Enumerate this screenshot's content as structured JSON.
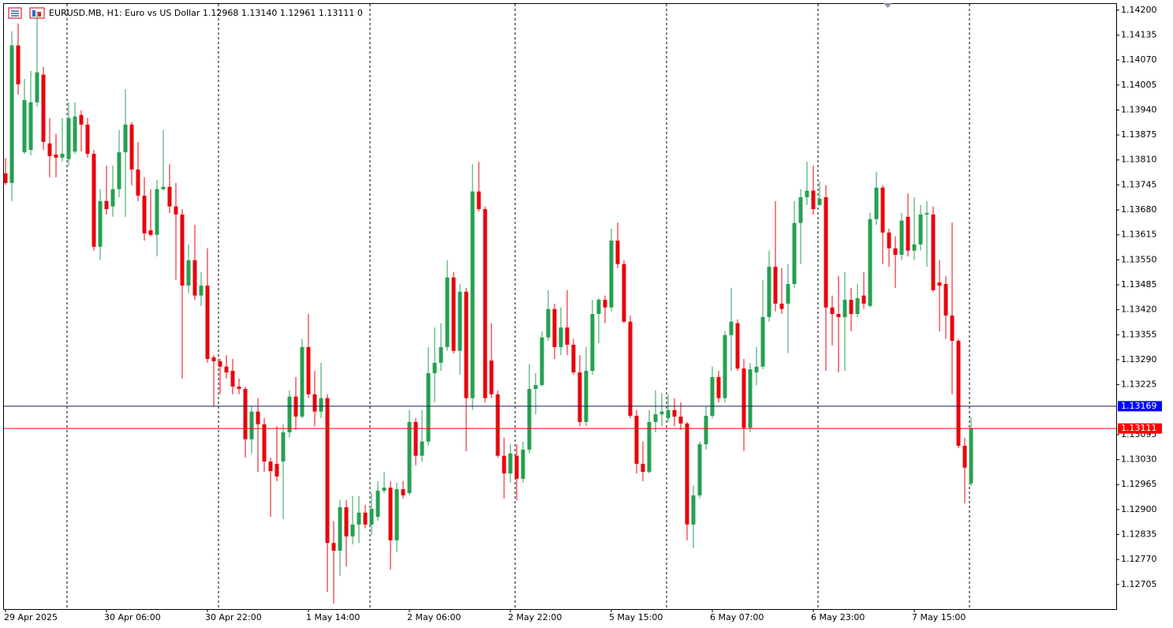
{
  "chart_data": {
    "type": "candlestick",
    "title": "EURUSD.MB, H1:  Euro vs US Dollar  1.12968 1.13140 1.12961 1.13111  0",
    "up_color": "#26a052",
    "down_color": "#e8050d",
    "categories": [
      "29 Apr 2025",
      null,
      null,
      null,
      null,
      null,
      null,
      null,
      null,
      null,
      null,
      null,
      null,
      null,
      null,
      null,
      "30 Apr 06:00",
      null,
      null,
      null,
      null,
      null,
      null,
      null,
      null,
      null,
      null,
      null,
      null,
      null,
      null,
      null,
      "30 Apr 22:00",
      null,
      null,
      null,
      null,
      null,
      null,
      null,
      null,
      null,
      null,
      null,
      null,
      null,
      null,
      null,
      "1 May 14:00",
      null,
      null,
      null,
      null,
      null,
      null,
      null,
      null,
      null,
      null,
      null,
      null,
      null,
      null,
      null,
      "2 May 06:00",
      null,
      null,
      null,
      null,
      null,
      null,
      null,
      null,
      null,
      null,
      null,
      null,
      null,
      null,
      null,
      "2 May 22:00",
      null,
      null,
      null,
      null,
      null,
      null,
      null,
      null,
      null,
      null,
      null,
      null,
      null,
      null,
      null,
      "5 May 15:00",
      null,
      null,
      null,
      null,
      null,
      null,
      null,
      null,
      null,
      null,
      null,
      null,
      null,
      null,
      null,
      "6 May 07:00",
      null,
      null,
      null,
      null,
      null,
      null,
      null,
      null,
      null,
      null,
      null,
      null,
      null,
      null,
      null,
      "6 May 23:00",
      null,
      null,
      null,
      null,
      null,
      null,
      null,
      null,
      null,
      null,
      null,
      null,
      null,
      null,
      null,
      "7 May 15:00",
      null,
      null,
      null,
      null,
      null,
      null,
      null,
      null,
      null
    ],
    "open": [
      1.13775,
      1.1375,
      1.14108,
      1.1383,
      1.13836,
      1.1396,
      1.14032,
      1.13853,
      1.13824,
      1.13816,
      1.13812,
      1.13832,
      1.13927,
      1.13902,
      1.13826,
      1.13584,
      1.13703,
      1.13689,
      1.13734,
      1.1383,
      1.13902,
      1.13785,
      1.13717,
      1.13627,
      1.13615,
      1.13734,
      1.1374,
      1.13689,
      1.13668,
      1.13483,
      1.13549,
      1.13457,
      1.13483,
      1.13296,
      1.13286,
      1.13272,
      1.13261,
      1.1322,
      1.13214,
      1.13083,
      1.13155,
      1.13122,
      1.13025,
      1.13019,
      1.13025,
      1.13101,
      1.13194,
      1.13142,
      1.13323,
      1.132,
      1.13155,
      1.1319,
      1.12813,
      1.12793,
      1.12906,
      1.1283,
      1.12861,
      1.12892,
      1.12861,
      1.12881,
      1.12949,
      1.12957,
      1.1282,
      1.12953,
      1.12943,
      1.13128,
      1.1304,
      1.13077,
      1.13255,
      1.13282,
      1.13323,
      1.13504,
      1.13313,
      1.13467,
      1.1319,
      1.13728,
      1.13682,
      1.13288,
      1.132,
      1.1304,
      1.12994,
      1.1304,
      1.1298,
      1.13056,
      1.13214,
      1.13224,
      1.13348,
      1.13422,
      1.13323,
      1.13374,
      1.13329,
      1.13257,
      1.13128,
      1.13261,
      1.13409,
      1.13446,
      1.13426,
      1.136,
      1.13539,
      1.13389,
      1.13144,
      1.13019,
      1.12998,
      1.13128,
      1.13148,
      1.13138,
      1.13159,
      1.13142,
      1.13124,
      1.12861,
      1.12937,
      1.1307,
      1.13144,
      1.13245,
      1.1319,
      1.13354,
      1.13385,
      1.13267,
      1.13113,
      1.13257,
      1.13272,
      1.13401,
      1.13532,
      1.13436,
      1.13436,
      1.13487,
      1.13646,
      1.13713,
      1.1373,
      1.13693,
      1.13713,
      1.13426,
      1.13409,
      1.13401,
      1.13446,
      1.13409,
      1.13457,
      1.1343,
      1.13656,
      1.13738,
      1.13621,
      1.1358,
      1.13563,
      1.13662,
      1.13574,
      1.1359,
      1.13668,
      1.13668,
      1.13491,
      1.13487,
      1.13405,
      1.13339,
      1.13066,
      1.12968
    ],
    "high": [
      1.13815,
      1.14145,
      1.14165,
      1.14021,
      1.14042,
      1.14196,
      1.14052,
      1.13919,
      1.13878,
      1.13919,
      1.1396,
      1.1396,
      1.13939,
      1.13919,
      1.13836,
      1.13734,
      1.13795,
      1.13795,
      1.13888,
      1.13994,
      1.13908,
      1.13857,
      1.13765,
      1.13734,
      1.13758,
      1.13888,
      1.13799,
      1.1375,
      1.13682,
      1.1359,
      1.13641,
      1.13518,
      1.1358,
      1.13302,
      1.13292,
      1.13302,
      1.13292,
      1.13241,
      1.1322,
      1.13169,
      1.1319,
      1.13138,
      1.13035,
      1.13117,
      1.13122,
      1.1321,
      1.13245,
      1.13344,
      1.13409,
      1.13261,
      1.13282,
      1.132,
      1.1287,
      1.12924,
      1.12924,
      1.12935,
      1.12935,
      1.12912,
      1.12943,
      1.12974,
      1.12998,
      1.12974,
      1.1297,
      1.12974,
      1.13159,
      1.13138,
      1.13159,
      1.13323,
      1.13374,
      1.13385,
      1.13549,
      1.13518,
      1.13487,
      1.13477,
      1.13799,
      1.13805,
      1.13689,
      1.13385,
      1.1321,
      1.13087,
      1.1307,
      1.1307,
      1.13077,
      1.13278,
      1.13255,
      1.13364,
      1.13471,
      1.13436,
      1.13426,
      1.13471,
      1.13344,
      1.13302,
      1.13323,
      1.13446,
      1.1345,
      1.13457,
      1.13631,
      1.13647,
      1.13549,
      1.13405,
      1.13159,
      1.13077,
      1.13159,
      1.1321,
      1.13204,
      1.132,
      1.1319,
      1.13179,
      1.13128,
      1.12963,
      1.13077,
      1.13169,
      1.13272,
      1.13261,
      1.13364,
      1.13477,
      1.13395,
      1.13292,
      1.13282,
      1.13323,
      1.13498,
      1.13574,
      1.13703,
      1.13528,
      1.13539,
      1.13703,
      1.13734,
      1.13805,
      1.13795,
      1.13754,
      1.13744,
      1.13457,
      1.13508,
      1.13518,
      1.13477,
      1.13487,
      1.13518,
      1.13672,
      1.13779,
      1.13744,
      1.13631,
      1.13611,
      1.13672,
      1.13723,
      1.13713,
      1.13693,
      1.13703,
      1.13689,
      1.13549,
      1.13508,
      1.13647,
      1.13344,
      1.13087,
      1.1314
    ],
    "low": [
      1.13745,
      1.13703,
      1.1398,
      1.13826,
      1.13822,
      1.13949,
      1.13836,
      1.13765,
      1.13765,
      1.13806,
      1.13795,
      1.13826,
      1.13832,
      1.13816,
      1.13574,
      1.13549,
      1.13668,
      1.13662,
      1.13713,
      1.13662,
      1.13744,
      1.13703,
      1.136,
      1.13611,
      1.13559,
      1.1373,
      1.13672,
      1.13498,
      1.13241,
      1.13463,
      1.13446,
      1.1343,
      1.13282,
      1.13169,
      1.132,
      1.13241,
      1.132,
      1.132,
      1.13035,
      1.13046,
      1.12998,
      1.12998,
      1.12881,
      1.12974,
      1.12875,
      1.13087,
      1.13107,
      1.13138,
      1.1319,
      1.13117,
      1.13138,
      1.12686,
      1.12655,
      1.12727,
      1.12752,
      1.12809,
      1.12813,
      1.12851,
      1.12834,
      1.12871,
      1.12943,
      1.12744,
      1.12789,
      1.12929,
      1.12937,
      1.13015,
      1.13025,
      1.13066,
      1.13179,
      1.13261,
      1.13313,
      1.13306,
      1.13251,
      1.13052,
      1.13159,
      1.13676,
      1.13179,
      1.1319,
      1.13035,
      1.12929,
      1.1297,
      1.12924,
      1.1297,
      1.13046,
      1.13148,
      1.1322,
      1.13339,
      1.13292,
      1.13302,
      1.13302,
      1.13251,
      1.13117,
      1.13117,
      1.13251,
      1.13333,
      1.13385,
      1.13416,
      1.13528,
      1.13385,
      1.13138,
      1.12994,
      1.12974,
      1.12994,
      1.13101,
      1.13117,
      1.13128,
      1.13117,
      1.13107,
      1.1282,
      1.12799,
      1.12929,
      1.13056,
      1.13138,
      1.13179,
      1.13179,
      1.13261,
      1.13261,
      1.13052,
      1.13101,
      1.13224,
      1.13265,
      1.13389,
      1.13416,
      1.13409,
      1.13307,
      1.13477,
      1.13539,
      1.13693,
      1.13668,
      1.13689,
      1.13261,
      1.13327,
      1.13257,
      1.13261,
      1.13364,
      1.13401,
      1.13422,
      1.13426,
      1.13641,
      1.13539,
      1.13532,
      1.13477,
      1.13549,
      1.13559,
      1.13549,
      1.13574,
      1.13532,
      1.13467,
      1.13364,
      1.13344,
      1.132,
      1.1306,
      1.12916,
      1.12961
    ],
    "close": [
      1.1375,
      1.14108,
      1.14007,
      1.13966,
      1.1396,
      1.14038,
      1.13857,
      1.1382,
      1.13816,
      1.13826,
      1.13919,
      1.13923,
      1.13902,
      1.13826,
      1.13584,
      1.13703,
      1.13682,
      1.13734,
      1.1383,
      1.13902,
      1.13785,
      1.13717,
      1.13619,
      1.13615,
      1.13734,
      1.1374,
      1.13689,
      1.13668,
      1.13483,
      1.13549,
      1.13457,
      1.13483,
      1.13292,
      1.13286,
      1.13272,
      1.13257,
      1.1322,
      1.13214,
      1.13083,
      1.13155,
      1.13122,
      1.13025,
      1.13,
      1.12986,
      1.13101,
      1.13194,
      1.13142,
      1.13323,
      1.132,
      1.13155,
      1.1319,
      1.12813,
      1.12793,
      1.12906,
      1.1283,
      1.12861,
      1.12892,
      1.12861,
      1.12902,
      1.12949,
      1.12957,
      1.1282,
      1.12953,
      1.12937,
      1.13128,
      1.1304,
      1.13077,
      1.13255,
      1.13282,
      1.13323,
      1.13504,
      1.13313,
      1.13467,
      1.1319,
      1.13728,
      1.13682,
      1.1319,
      1.132,
      1.1304,
      1.12994,
      1.13046,
      1.1298,
      1.13056,
      1.13214,
      1.13224,
      1.13348,
      1.13422,
      1.13323,
      1.13374,
      1.13329,
      1.13257,
      1.13128,
      1.13261,
      1.13409,
      1.13446,
      1.13426,
      1.136,
      1.13539,
      1.13389,
      1.13144,
      1.13019,
      1.12998,
      1.13128,
      1.13148,
      1.13155,
      1.13159,
      1.13142,
      1.13124,
      1.12861,
      1.12937,
      1.1307,
      1.13144,
      1.13245,
      1.1319,
      1.13354,
      1.13389,
      1.13267,
      1.13113,
      1.13265,
      1.13272,
      1.13401,
      1.13532,
      1.13436,
      1.13422,
      1.13487,
      1.13646,
      1.13713,
      1.1373,
      1.13682,
      1.13709,
      1.13426,
      1.13409,
      1.13401,
      1.13446,
      1.13409,
      1.1345,
      1.13436,
      1.13656,
      1.13738,
      1.13621,
      1.1358,
      1.13563,
      1.13652,
      1.13574,
      1.1359,
      1.13668,
      1.13672,
      1.13471,
      1.13483,
      1.13405,
      1.13339,
      1.13066,
      1.13009,
      1.13111
    ],
    "ylim": [
      1.12641,
      1.14216
    ],
    "yticks": [
      {
        "value": 1.142,
        "label": "1.14200"
      },
      1.14135,
      {
        "value": 1.1407,
        "label": "1.14070"
      },
      1.14005,
      {
        "value": 1.1394,
        "label": "1.13940"
      },
      1.13875,
      {
        "value": 1.1381,
        "label": "1.13810"
      },
      1.13745,
      {
        "value": 1.1368,
        "label": "1.13680"
      },
      1.13615,
      {
        "value": 1.1355,
        "label": "1.13550"
      },
      1.13485,
      {
        "value": 1.1342,
        "label": "1.13420"
      },
      1.13355,
      {
        "value": 1.1329,
        "label": "1.13290"
      },
      1.13225,
      1.13095,
      {
        "value": 1.1303,
        "label": "1.13030"
      },
      1.12965,
      {
        "value": 1.129,
        "label": "1.12900"
      },
      1.12835,
      {
        "value": 1.1277,
        "label": "1.12770"
      },
      1.12705
    ],
    "ask_line": {
      "value": 1.13169,
      "color": "#0000ff",
      "line_color": "#1a1a60"
    },
    "bid_line": {
      "value": 1.13111,
      "color": "#ff0000",
      "line_color": "#ff0000"
    }
  }
}
